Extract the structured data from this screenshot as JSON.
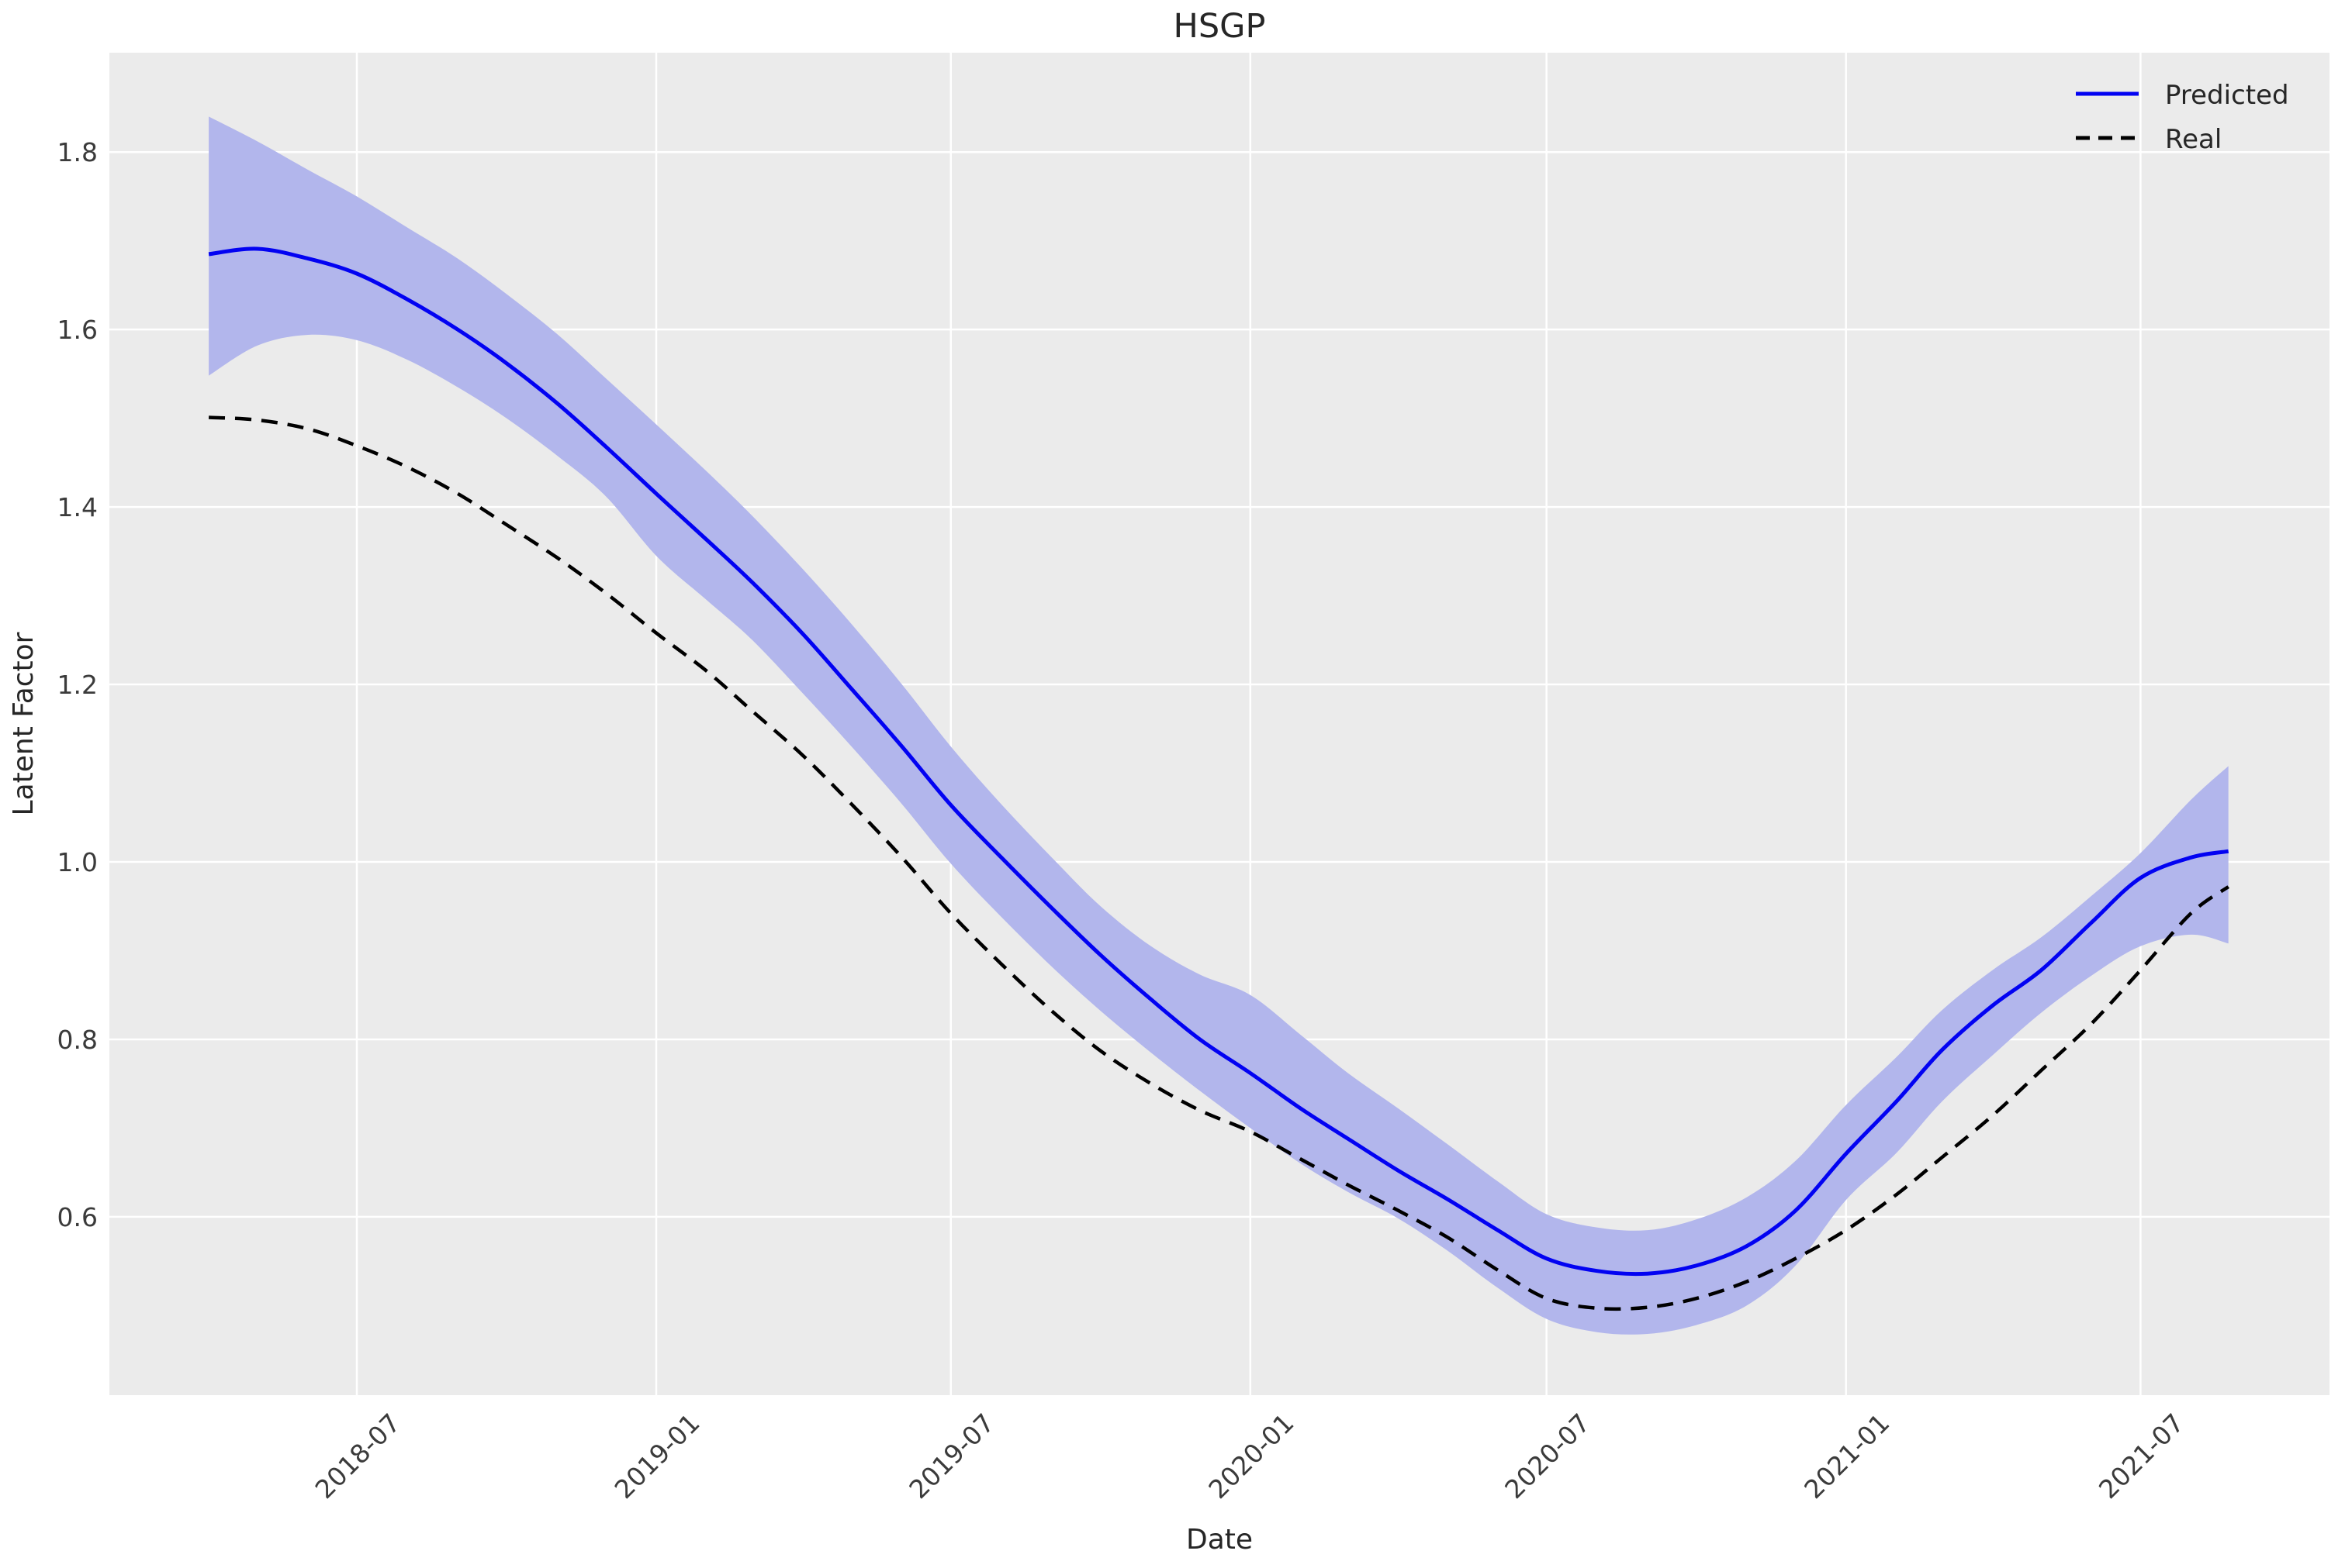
{
  "title": "HSGP",
  "xlabel": "Date",
  "ylabel": "Latent Factor",
  "legend": [
    {
      "label": "Predicted",
      "style": "solid",
      "color": "#0202f2"
    },
    {
      "label": "Real",
      "style": "dashed",
      "color": "#000000"
    }
  ],
  "colors": {
    "plot_background": "#ebebeb",
    "grid": "#ffffff",
    "band_fill": "#b2b6ec",
    "predicted_line": "#0202f2",
    "real_line": "#000000",
    "text": "#262626"
  },
  "axes": {
    "x_ticks": [
      {
        "label": "2018-07",
        "d": 91
      },
      {
        "label": "2019-01",
        "d": 275
      },
      {
        "label": "2019-07",
        "d": 456
      },
      {
        "label": "2020-01",
        "d": 640
      },
      {
        "label": "2020-07",
        "d": 822
      },
      {
        "label": "2021-01",
        "d": 1006
      },
      {
        "label": "2021-07",
        "d": 1187
      }
    ],
    "y_ticks": [
      "1.8",
      "1.6",
      "1.4",
      "1.2",
      "1.0",
      "0.8",
      "0.6"
    ],
    "y_tick_values": [
      1.8,
      1.6,
      1.4,
      1.2,
      1.0,
      0.8,
      0.6
    ]
  },
  "chart_data": {
    "type": "line",
    "title": "HSGP",
    "xlabel": "Date",
    "ylabel": "Latent Factor",
    "grid": true,
    "legend_position": "upper right",
    "ylim": [
      0.399,
      1.912
    ],
    "x_unit": "days since 2018-04-01",
    "x": [
      0,
      30,
      61,
      91,
      122,
      153,
      183,
      214,
      244,
      275,
      306,
      334,
      365,
      395,
      426,
      456,
      487,
      518,
      548,
      579,
      609,
      640,
      671,
      700,
      731,
      761,
      792,
      822,
      853,
      884,
      914,
      945,
      975,
      1006,
      1037,
      1065,
      1096,
      1126,
      1157,
      1187,
      1218,
      1241
    ],
    "x_labels": [
      "2018-04",
      "2018-05",
      "2018-06",
      "2018-07",
      "2018-08",
      "2018-09",
      "2018-10",
      "2018-11",
      "2018-12",
      "2019-01",
      "2019-02",
      "2019-03",
      "2019-04",
      "2019-05",
      "2019-06",
      "2019-07",
      "2019-08",
      "2019-09",
      "2019-10",
      "2019-11",
      "2019-12",
      "2020-01",
      "2020-02",
      "2020-03",
      "2020-04",
      "2020-05",
      "2020-06",
      "2020-07",
      "2020-08",
      "2020-09",
      "2020-10",
      "2020-11",
      "2020-12",
      "2021-01",
      "2021-02",
      "2021-03",
      "2021-04",
      "2021-05",
      "2021-06",
      "2021-07",
      "2021-08",
      "2021-08-24"
    ],
    "series": [
      {
        "name": "Predicted",
        "values": [
          1.685,
          1.691,
          1.68,
          1.663,
          1.634,
          1.6,
          1.562,
          1.517,
          1.468,
          1.415,
          1.363,
          1.315,
          1.257,
          1.195,
          1.13,
          1.064,
          1.005,
          0.948,
          0.895,
          0.845,
          0.8,
          0.762,
          0.722,
          0.688,
          0.652,
          0.62,
          0.585,
          0.553,
          0.539,
          0.536,
          0.545,
          0.567,
          0.607,
          0.671,
          0.73,
          0.788,
          0.838,
          0.878,
          0.932,
          0.982,
          1.005,
          1.012
        ]
      },
      {
        "name": "Predicted upper band",
        "values": [
          1.84,
          1.812,
          1.78,
          1.75,
          1.715,
          1.68,
          1.64,
          1.595,
          1.545,
          1.493,
          1.44,
          1.39,
          1.33,
          1.268,
          1.2,
          1.13,
          1.065,
          1.005,
          0.95,
          0.905,
          0.873,
          0.85,
          0.805,
          0.762,
          0.722,
          0.682,
          0.64,
          0.603,
          0.588,
          0.585,
          0.597,
          0.622,
          0.663,
          0.726,
          0.78,
          0.833,
          0.878,
          0.915,
          0.962,
          1.01,
          1.07,
          1.108
        ]
      },
      {
        "name": "Predicted lower band",
        "values": [
          1.548,
          1.582,
          1.594,
          1.588,
          1.566,
          1.535,
          1.5,
          1.458,
          1.412,
          1.345,
          1.295,
          1.25,
          1.19,
          1.13,
          1.065,
          0.998,
          0.938,
          0.882,
          0.832,
          0.785,
          0.742,
          0.7,
          0.66,
          0.628,
          0.598,
          0.562,
          0.52,
          0.485,
          0.47,
          0.468,
          0.478,
          0.5,
          0.545,
          0.619,
          0.672,
          0.73,
          0.782,
          0.83,
          0.872,
          0.905,
          0.918,
          0.908
        ]
      },
      {
        "name": "Real",
        "values": [
          1.501,
          1.498,
          1.488,
          1.469,
          1.445,
          1.415,
          1.38,
          1.343,
          1.303,
          1.258,
          1.215,
          1.17,
          1.12,
          1.065,
          1.005,
          0.942,
          0.885,
          0.832,
          0.787,
          0.75,
          0.72,
          0.696,
          0.665,
          0.636,
          0.607,
          0.577,
          0.54,
          0.508,
          0.497,
          0.498,
          0.508,
          0.527,
          0.553,
          0.585,
          0.625,
          0.667,
          0.714,
          0.765,
          0.818,
          0.878,
          0.942,
          0.972
        ]
      }
    ]
  }
}
